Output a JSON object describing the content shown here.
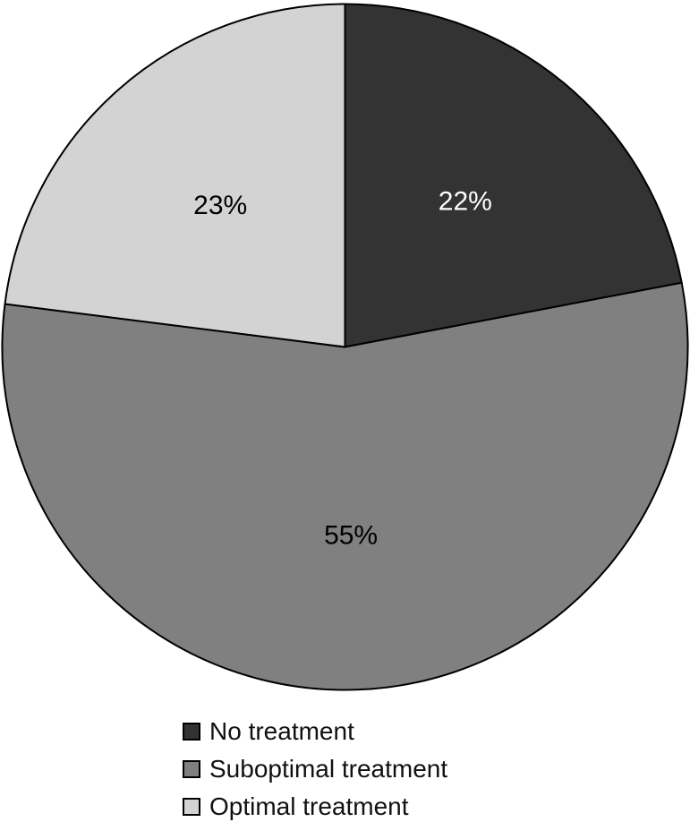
{
  "figure": {
    "background": "#ffffff",
    "stroke_color": "#000000"
  },
  "chart_data": {
    "type": "pie",
    "title": "",
    "start_angle_deg": 0,
    "direction": "clockwise",
    "legend_position": "bottom",
    "stroke_color": "#000000",
    "slices": [
      {
        "label": "No treatment",
        "value": 22,
        "display": "22%",
        "color": "#333333",
        "label_color": "#ffffff"
      },
      {
        "label": "Suboptimal treatment",
        "value": 55,
        "display": "55%",
        "color": "#808080",
        "label_color": "#000000"
      },
      {
        "label": "Optimal treatment",
        "value": 23,
        "display": "23%",
        "color": "#d3d3d3",
        "label_color": "#000000"
      }
    ]
  }
}
